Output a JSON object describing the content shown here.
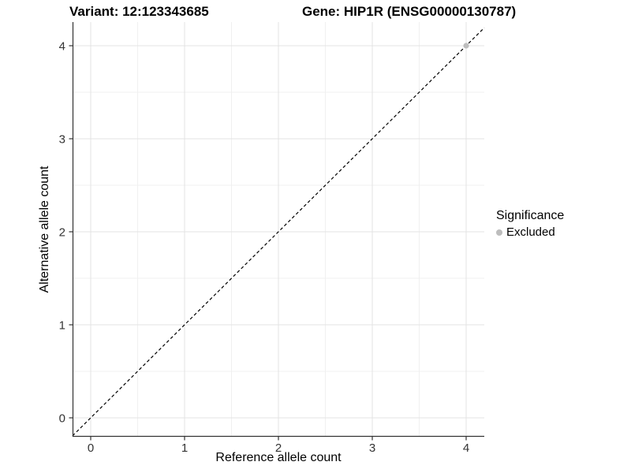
{
  "chart_data": {
    "type": "scatter",
    "title_left": "Variant: 12:123343685",
    "title_right": "Gene: HIP1R (ENSG00000130787)",
    "xlabel": "Reference allele count",
    "ylabel": "Alternative allele count",
    "xlim": [
      -0.19,
      4.19
    ],
    "ylim": [
      -0.2,
      4.25
    ],
    "xticks": [
      0,
      1,
      2,
      3,
      4
    ],
    "yticks": [
      0,
      1,
      2,
      3,
      4
    ],
    "xticks_minor": [
      0.5,
      1.5,
      2.5,
      3.5
    ],
    "yticks_minor": [
      0.5,
      1.5,
      2.5,
      3.5
    ],
    "grid": true,
    "reference_line": {
      "kind": "identity",
      "linestyle": "dashed",
      "color": "#000000"
    },
    "series": [
      {
        "name": "Excluded",
        "color": "#bdbdbd",
        "points": [
          [
            4,
            4
          ]
        ]
      }
    ],
    "legend": {
      "title": "Significance",
      "position": "right",
      "entries": [
        {
          "label": "Excluded",
          "color": "#bdbdbd"
        }
      ]
    }
  },
  "colors": {
    "background": "#ffffff",
    "grid_major": "#e3e3e3",
    "grid_minor": "#f0f0f0",
    "axis_line": "#333333",
    "tick_text": "#333333",
    "title_text": "#000000",
    "point_gray": "#bdbdbd"
  }
}
